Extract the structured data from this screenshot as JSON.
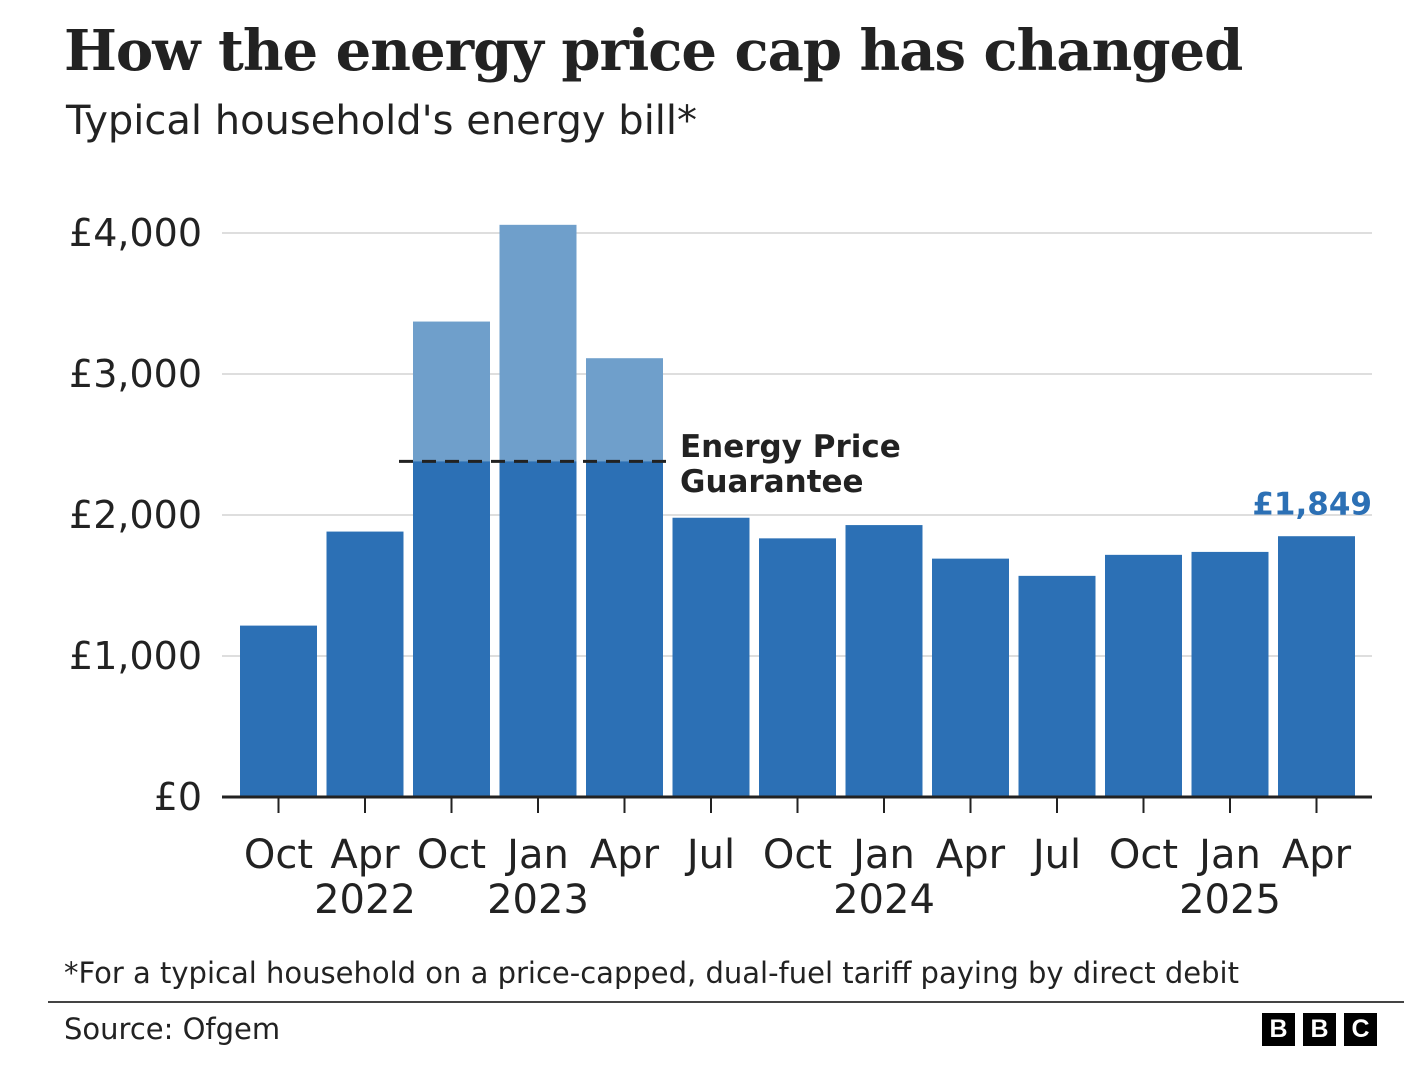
{
  "header": {
    "title": "How the energy price cap has changed",
    "subtitle": "Typical household's energy bill*"
  },
  "chart_data": {
    "type": "bar",
    "title": "How the energy price cap has changed",
    "subtitle": "Typical household's energy bill*",
    "xlabel": "",
    "ylabel": "",
    "ylim": [
      0,
      4000
    ],
    "yticks": [
      {
        "value": 0,
        "label": "£0"
      },
      {
        "value": 1000,
        "label": "£1,000"
      },
      {
        "value": 2000,
        "label": "£2,000"
      },
      {
        "value": 3000,
        "label": "£3,000"
      },
      {
        "value": 4000,
        "label": "£4,000"
      }
    ],
    "categories": [
      "Oct",
      "Apr",
      "Oct",
      "Jan",
      "Apr",
      "Jul",
      "Oct",
      "Jan",
      "Apr",
      "Jul",
      "Oct",
      "Jan",
      "Apr"
    ],
    "year_labels": [
      {
        "index": 1,
        "label": "2022"
      },
      {
        "index": 3,
        "label": "2023"
      },
      {
        "index": 7,
        "label": "2024"
      },
      {
        "index": 11,
        "label": "2025"
      }
    ],
    "series": [
      {
        "name": "Price cap",
        "color": "#6f9fcb",
        "values": [
          1215,
          1882,
          3372,
          4058,
          3112,
          1980,
          1834,
          1928,
          1690,
          1568,
          1717,
          1738,
          1849
        ]
      },
      {
        "name": "Energy Price Guarantee",
        "color": "#2c70b5",
        "values": [
          1215,
          1882,
          2380,
          2380,
          2380,
          1980,
          1834,
          1928,
          1690,
          1568,
          1717,
          1738,
          1849
        ]
      }
    ],
    "annotations": [
      {
        "text_lines": [
          "Energy Price",
          "Guarantee"
        ],
        "value": 2380,
        "start_index": 2,
        "end_index": 4
      },
      {
        "text": "£1,849",
        "index": 12,
        "color": "#2c70b5"
      }
    ],
    "grid": true
  },
  "footer": {
    "footnote": "*For a typical household on a price-capped, dual-fuel tariff paying by direct debit",
    "source": "Source: Ofgem",
    "logo_letters": [
      "B",
      "B",
      "C"
    ]
  }
}
